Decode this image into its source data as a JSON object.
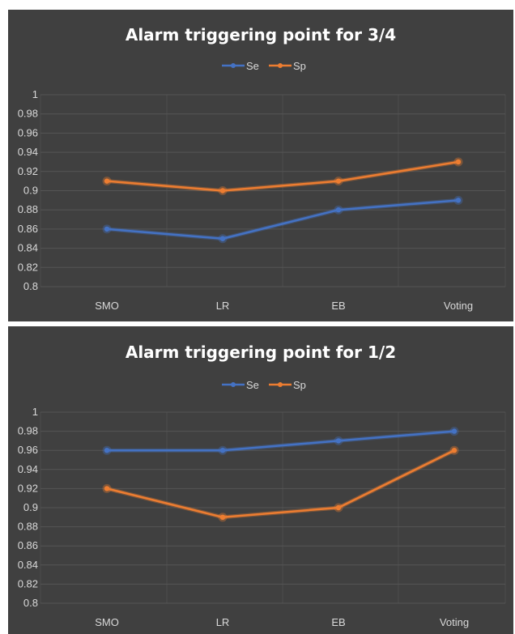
{
  "chart_data": [
    {
      "type": "line",
      "title": "Alarm triggering point for 3/4",
      "categories": [
        "SMO",
        "LR",
        "EB",
        "Voting"
      ],
      "series": [
        {
          "name": "Se",
          "color": "#4472c4",
          "values": [
            0.86,
            0.85,
            0.88,
            0.89
          ]
        },
        {
          "name": "Sp",
          "color": "#ed7d31",
          "values": [
            0.91,
            0.9,
            0.91,
            0.93
          ]
        }
      ],
      "yticks": [
        "1",
        "0.98",
        "0.96",
        "0.94",
        "0.92",
        "0.9",
        "0.88",
        "0.86",
        "0.84",
        "0.82",
        "0.8"
      ],
      "ylim": [
        0.8,
        1.0
      ],
      "grid": true,
      "legend_position": "top"
    },
    {
      "type": "line",
      "title": "Alarm triggering point for 1/2",
      "categories": [
        "SMO",
        "LR",
        "EB",
        "Voting"
      ],
      "series": [
        {
          "name": "Se",
          "color": "#4472c4",
          "values": [
            0.96,
            0.96,
            0.97,
            0.98
          ]
        },
        {
          "name": "Sp",
          "color": "#ed7d31",
          "values": [
            0.92,
            0.89,
            0.9,
            0.96
          ]
        }
      ],
      "yticks": [
        "1",
        "0.98",
        "0.96",
        "0.94",
        "0.92",
        "0.9",
        "0.88",
        "0.86",
        "0.84",
        "0.82",
        "0.8"
      ],
      "ylim": [
        0.8,
        1.0
      ],
      "grid": true,
      "legend_position": "top"
    }
  ],
  "colors": {
    "background": "#404040",
    "text": "#d9d9d9",
    "title": "#ffffff",
    "gridline": "#555555"
  }
}
